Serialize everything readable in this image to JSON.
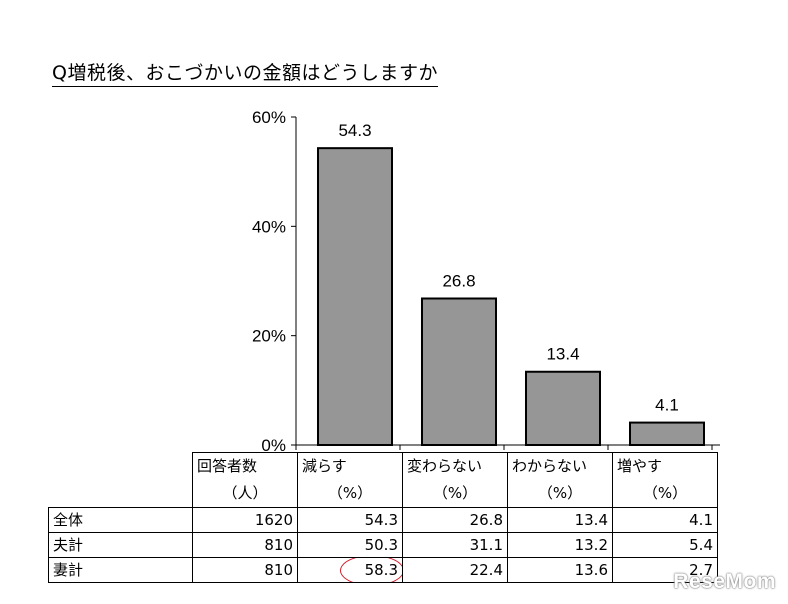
{
  "title": "Q増税後、おこづかいの金額はどうしますか",
  "chart_data": {
    "type": "bar",
    "categories": [
      "減らす",
      "変わらない",
      "わからない",
      "増やす"
    ],
    "values": [
      54.3,
      26.8,
      13.4,
      4.1
    ],
    "data_labels": [
      "54.3",
      "26.8",
      "13.4",
      "4.1"
    ],
    "ylim": [
      0,
      60
    ],
    "yticks": [
      {
        "value": 0,
        "label": "0%"
      },
      {
        "value": 20,
        "label": "20%"
      },
      {
        "value": 40,
        "label": "40%"
      },
      {
        "value": 60,
        "label": "60%"
      }
    ],
    "bar_color": "#969696",
    "grid": false,
    "legend": "none"
  },
  "table": {
    "headers": [
      {
        "label": "回答者数",
        "unit": "（人）"
      },
      {
        "label": "減らす",
        "unit": "（%）"
      },
      {
        "label": "変わらない",
        "unit": "（%）"
      },
      {
        "label": "わからない",
        "unit": "（%）"
      },
      {
        "label": "増やす",
        "unit": "（%）"
      }
    ],
    "rows": [
      {
        "label": "全体",
        "values": [
          "1620",
          "54.3",
          "26.8",
          "13.4",
          "4.1"
        ]
      },
      {
        "label": "夫計",
        "values": [
          "810",
          "50.3",
          "31.1",
          "13.2",
          "5.4"
        ]
      },
      {
        "label": "妻計",
        "values": [
          "810",
          "58.3",
          "22.4",
          "13.6",
          "2.7"
        ]
      }
    ],
    "highlight_color": "#d21f2e"
  },
  "watermark": "ReseMom"
}
